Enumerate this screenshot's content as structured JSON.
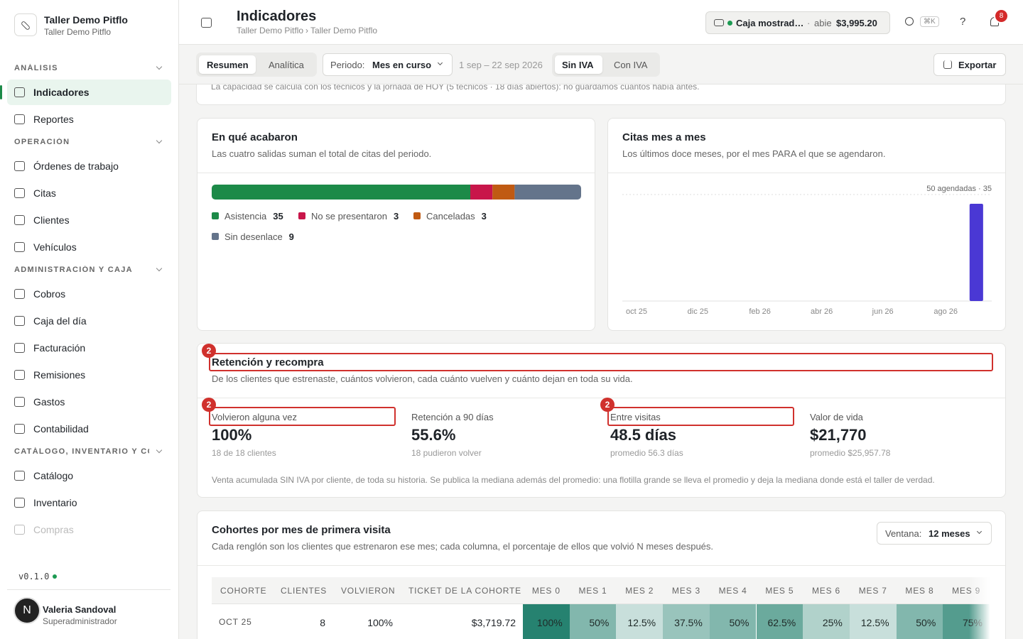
{
  "sidebar": {
    "org_name": "Taller Demo Pitflo",
    "org_sub": "Taller Demo Pitflo",
    "sections": [
      {
        "label": "ANÁLISIS",
        "items": [
          "Indicadores",
          "Reportes"
        ]
      },
      {
        "label": "OPERACIÓN",
        "items": [
          "Órdenes de trabajo",
          "Citas",
          "Clientes",
          "Vehículos"
        ]
      },
      {
        "label": "ADMINISTRACIÓN Y CAJA",
        "items": [
          "Cobros",
          "Caja del día",
          "Facturación",
          "Remisiones",
          "Gastos",
          "Contabilidad"
        ]
      },
      {
        "label": "CATÁLOGO, INVENTARIO Y CO…",
        "items": [
          "Catálogo",
          "Inventario",
          "Compras"
        ]
      }
    ],
    "version": "v0.1.0",
    "user": {
      "initial": "N",
      "name": "Valeria Sandoval",
      "role": "Superadministrador"
    }
  },
  "header": {
    "title": "Indicadores",
    "breadcrumb": [
      "Taller Demo Pitflo",
      "Taller Demo Pitflo"
    ],
    "breadcrumb_separator": "›",
    "cash": {
      "name": "Caja mostrad…",
      "separator": "·",
      "status": "abie",
      "amount": "$3,995.20"
    },
    "shortcut": "⌘K",
    "help": "?",
    "notifications": "8"
  },
  "toolbar": {
    "views": [
      "Resumen",
      "Analítica"
    ],
    "period_label": "Periodo:",
    "period_value": "Mes en curso",
    "date_range": "1 sep – 22 sep 2026",
    "tax_modes": [
      "Sin IVA",
      "Con IVA"
    ],
    "export": "Exportar"
  },
  "capacity_note": "La capacidad se calcula con los técnicos y la jornada de HOY (5 técnicos · 18 días abiertos): no guardamos cuántos había antes.",
  "chart_data": [
    {
      "type": "stacked_bar",
      "title": "En qué acabaron",
      "subtitle": "Las cuatro salidas suman el total de citas del periodo.",
      "series": [
        {
          "name": "Asistencia",
          "color": "#1c8a48",
          "values": [
            35
          ]
        },
        {
          "name": "No se presentaron",
          "color": "#c8164a",
          "values": [
            3
          ]
        },
        {
          "name": "Canceladas",
          "color": "#c05a12",
          "values": [
            3
          ]
        },
        {
          "name": "Sin desenlace",
          "color": "#64748b",
          "values": [
            9
          ]
        }
      ]
    },
    {
      "type": "bar",
      "title": "Citas mes a mes",
      "subtitle": "Los últimos doce meses, por el mes PARA el que se agendaron.",
      "categories": [
        "oct 25",
        null,
        "dic 25",
        null,
        "feb 26",
        null,
        "abr 26",
        null,
        "jun 26",
        null,
        "ago 26",
        null
      ],
      "values": [
        0,
        0,
        0,
        0,
        0,
        0,
        0,
        0,
        0,
        0,
        0,
        35
      ],
      "color": "#4a38d4",
      "annotation": "50 agendadas · 35"
    }
  ],
  "retention": {
    "title": "Retención y recompra",
    "subtitle": "De los clientes que estrenaste, cuántos volvieron, cada cuánto vuelven y cuánto dejan en toda su vida.",
    "metrics": [
      {
        "label": "Volvieron alguna vez",
        "value": "100%",
        "detail": "18 de 18 clientes"
      },
      {
        "label": "Retención a 90 días",
        "value": "55.6%",
        "detail": "18 pudieron volver"
      },
      {
        "label": "Entre visitas",
        "value": "48.5 días",
        "detail": "promedio 56.3 días"
      },
      {
        "label": "Valor de vida",
        "value": "$21,770",
        "detail": "promedio $25,957.78"
      }
    ],
    "footnote": "Venta acumulada SIN IVA por cliente, de toda su historia. Se publica la mediana además del promedio: una flotilla grande se lleva el promedio y deja la mediana donde está el taller de verdad."
  },
  "annotations": [
    "2",
    "2",
    "2"
  ],
  "cohorts": {
    "title": "Cohortes por mes de primera visita",
    "subtitle": "Cada renglón son los clientes que estrenaron ese mes; cada columna, el porcentaje de ellos que volvió N meses después.",
    "window_label": "Ventana:",
    "window_value": "12 meses",
    "columns": [
      "COHORTE",
      "CLIENTES",
      "VOLVIERON",
      "TICKET DE LA COHORTE",
      "MES 0",
      "MES 1",
      "MES 2",
      "MES 3",
      "MES 4",
      "MES 5",
      "MES 6",
      "MES 7",
      "MES 8",
      "MES 9"
    ],
    "rows": [
      [
        "OCT 25",
        "8",
        "100%",
        "$3,719.72",
        "100%",
        "50%",
        "12.5%",
        "37.5%",
        "50%",
        "62.5%",
        "25%",
        "12.5%",
        "50%",
        "75%"
      ]
    ]
  }
}
